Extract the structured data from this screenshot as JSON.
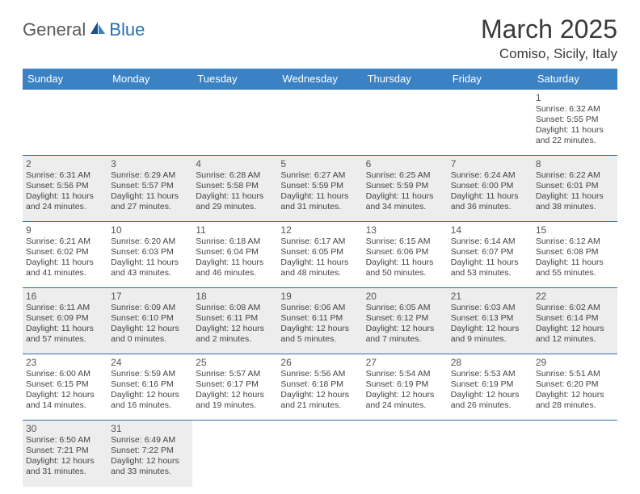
{
  "logo": {
    "part1": "General",
    "part2": "Blue"
  },
  "title": "March 2025",
  "location": "Comiso, Sicily, Italy",
  "colors": {
    "header_bg": "#3b82c4",
    "header_text": "#ffffff",
    "rule": "#2a6fb5",
    "shaded": "#ededed",
    "text": "#444444",
    "logo_gray": "#5a5a5a",
    "logo_blue": "#2a6fb5"
  },
  "weekdays": [
    "Sunday",
    "Monday",
    "Tuesday",
    "Wednesday",
    "Thursday",
    "Friday",
    "Saturday"
  ],
  "weeks": [
    [
      {
        "day": "",
        "shaded": false,
        "lines": []
      },
      {
        "day": "",
        "shaded": false,
        "lines": []
      },
      {
        "day": "",
        "shaded": false,
        "lines": []
      },
      {
        "day": "",
        "shaded": false,
        "lines": []
      },
      {
        "day": "",
        "shaded": false,
        "lines": []
      },
      {
        "day": "",
        "shaded": false,
        "lines": []
      },
      {
        "day": "1",
        "shaded": false,
        "lines": [
          "Sunrise: 6:32 AM",
          "Sunset: 5:55 PM",
          "Daylight: 11 hours",
          "and 22 minutes."
        ]
      }
    ],
    [
      {
        "day": "2",
        "shaded": true,
        "lines": [
          "Sunrise: 6:31 AM",
          "Sunset: 5:56 PM",
          "Daylight: 11 hours",
          "and 24 minutes."
        ]
      },
      {
        "day": "3",
        "shaded": true,
        "lines": [
          "Sunrise: 6:29 AM",
          "Sunset: 5:57 PM",
          "Daylight: 11 hours",
          "and 27 minutes."
        ]
      },
      {
        "day": "4",
        "shaded": true,
        "lines": [
          "Sunrise: 6:28 AM",
          "Sunset: 5:58 PM",
          "Daylight: 11 hours",
          "and 29 minutes."
        ]
      },
      {
        "day": "5",
        "shaded": true,
        "lines": [
          "Sunrise: 6:27 AM",
          "Sunset: 5:59 PM",
          "Daylight: 11 hours",
          "and 31 minutes."
        ]
      },
      {
        "day": "6",
        "shaded": true,
        "lines": [
          "Sunrise: 6:25 AM",
          "Sunset: 5:59 PM",
          "Daylight: 11 hours",
          "and 34 minutes."
        ]
      },
      {
        "day": "7",
        "shaded": true,
        "lines": [
          "Sunrise: 6:24 AM",
          "Sunset: 6:00 PM",
          "Daylight: 11 hours",
          "and 36 minutes."
        ]
      },
      {
        "day": "8",
        "shaded": true,
        "lines": [
          "Sunrise: 6:22 AM",
          "Sunset: 6:01 PM",
          "Daylight: 11 hours",
          "and 38 minutes."
        ]
      }
    ],
    [
      {
        "day": "9",
        "shaded": false,
        "lines": [
          "Sunrise: 6:21 AM",
          "Sunset: 6:02 PM",
          "Daylight: 11 hours",
          "and 41 minutes."
        ]
      },
      {
        "day": "10",
        "shaded": false,
        "lines": [
          "Sunrise: 6:20 AM",
          "Sunset: 6:03 PM",
          "Daylight: 11 hours",
          "and 43 minutes."
        ]
      },
      {
        "day": "11",
        "shaded": false,
        "lines": [
          "Sunrise: 6:18 AM",
          "Sunset: 6:04 PM",
          "Daylight: 11 hours",
          "and 46 minutes."
        ]
      },
      {
        "day": "12",
        "shaded": false,
        "lines": [
          "Sunrise: 6:17 AM",
          "Sunset: 6:05 PM",
          "Daylight: 11 hours",
          "and 48 minutes."
        ]
      },
      {
        "day": "13",
        "shaded": false,
        "lines": [
          "Sunrise: 6:15 AM",
          "Sunset: 6:06 PM",
          "Daylight: 11 hours",
          "and 50 minutes."
        ]
      },
      {
        "day": "14",
        "shaded": false,
        "lines": [
          "Sunrise: 6:14 AM",
          "Sunset: 6:07 PM",
          "Daylight: 11 hours",
          "and 53 minutes."
        ]
      },
      {
        "day": "15",
        "shaded": false,
        "lines": [
          "Sunrise: 6:12 AM",
          "Sunset: 6:08 PM",
          "Daylight: 11 hours",
          "and 55 minutes."
        ]
      }
    ],
    [
      {
        "day": "16",
        "shaded": true,
        "lines": [
          "Sunrise: 6:11 AM",
          "Sunset: 6:09 PM",
          "Daylight: 11 hours",
          "and 57 minutes."
        ]
      },
      {
        "day": "17",
        "shaded": true,
        "lines": [
          "Sunrise: 6:09 AM",
          "Sunset: 6:10 PM",
          "Daylight: 12 hours",
          "and 0 minutes."
        ]
      },
      {
        "day": "18",
        "shaded": true,
        "lines": [
          "Sunrise: 6:08 AM",
          "Sunset: 6:11 PM",
          "Daylight: 12 hours",
          "and 2 minutes."
        ]
      },
      {
        "day": "19",
        "shaded": true,
        "lines": [
          "Sunrise: 6:06 AM",
          "Sunset: 6:11 PM",
          "Daylight: 12 hours",
          "and 5 minutes."
        ]
      },
      {
        "day": "20",
        "shaded": true,
        "lines": [
          "Sunrise: 6:05 AM",
          "Sunset: 6:12 PM",
          "Daylight: 12 hours",
          "and 7 minutes."
        ]
      },
      {
        "day": "21",
        "shaded": true,
        "lines": [
          "Sunrise: 6:03 AM",
          "Sunset: 6:13 PM",
          "Daylight: 12 hours",
          "and 9 minutes."
        ]
      },
      {
        "day": "22",
        "shaded": true,
        "lines": [
          "Sunrise: 6:02 AM",
          "Sunset: 6:14 PM",
          "Daylight: 12 hours",
          "and 12 minutes."
        ]
      }
    ],
    [
      {
        "day": "23",
        "shaded": false,
        "lines": [
          "Sunrise: 6:00 AM",
          "Sunset: 6:15 PM",
          "Daylight: 12 hours",
          "and 14 minutes."
        ]
      },
      {
        "day": "24",
        "shaded": false,
        "lines": [
          "Sunrise: 5:59 AM",
          "Sunset: 6:16 PM",
          "Daylight: 12 hours",
          "and 16 minutes."
        ]
      },
      {
        "day": "25",
        "shaded": false,
        "lines": [
          "Sunrise: 5:57 AM",
          "Sunset: 6:17 PM",
          "Daylight: 12 hours",
          "and 19 minutes."
        ]
      },
      {
        "day": "26",
        "shaded": false,
        "lines": [
          "Sunrise: 5:56 AM",
          "Sunset: 6:18 PM",
          "Daylight: 12 hours",
          "and 21 minutes."
        ]
      },
      {
        "day": "27",
        "shaded": false,
        "lines": [
          "Sunrise: 5:54 AM",
          "Sunset: 6:19 PM",
          "Daylight: 12 hours",
          "and 24 minutes."
        ]
      },
      {
        "day": "28",
        "shaded": false,
        "lines": [
          "Sunrise: 5:53 AM",
          "Sunset: 6:19 PM",
          "Daylight: 12 hours",
          "and 26 minutes."
        ]
      },
      {
        "day": "29",
        "shaded": false,
        "lines": [
          "Sunrise: 5:51 AM",
          "Sunset: 6:20 PM",
          "Daylight: 12 hours",
          "and 28 minutes."
        ]
      }
    ],
    [
      {
        "day": "30",
        "shaded": true,
        "lines": [
          "Sunrise: 6:50 AM",
          "Sunset: 7:21 PM",
          "Daylight: 12 hours",
          "and 31 minutes."
        ]
      },
      {
        "day": "31",
        "shaded": true,
        "lines": [
          "Sunrise: 6:49 AM",
          "Sunset: 7:22 PM",
          "Daylight: 12 hours",
          "and 33 minutes."
        ]
      },
      {
        "day": "",
        "shaded": false,
        "lines": []
      },
      {
        "day": "",
        "shaded": false,
        "lines": []
      },
      {
        "day": "",
        "shaded": false,
        "lines": []
      },
      {
        "day": "",
        "shaded": false,
        "lines": []
      },
      {
        "day": "",
        "shaded": false,
        "lines": []
      }
    ]
  ]
}
